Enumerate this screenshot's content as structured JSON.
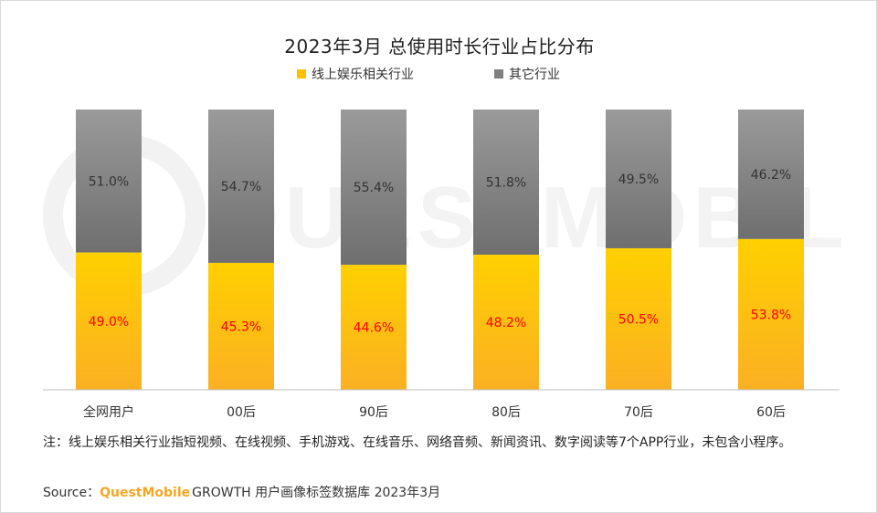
{
  "chart_data": {
    "type": "bar",
    "stacked": true,
    "title": "2023年3月 总使用时长行业占比分布",
    "categories": [
      "全网用户",
      "00后",
      "90后",
      "80后",
      "70后",
      "60后"
    ],
    "series": [
      {
        "name": "线上娱乐相关行业",
        "color": "#ffc000",
        "values": [
          49.0,
          45.3,
          44.6,
          48.2,
          50.5,
          53.8
        ],
        "labels": [
          "49.0%",
          "45.3%",
          "44.6%",
          "48.2%",
          "50.5%",
          "53.8%"
        ],
        "label_color": "#ff0000"
      },
      {
        "name": "其它行业",
        "color": "#7f7f7f",
        "values": [
          51.0,
          54.7,
          55.4,
          51.8,
          49.5,
          46.2
        ],
        "labels": [
          "51.0%",
          "54.7%",
          "55.4%",
          "51.8%",
          "49.5%",
          "46.2%"
        ],
        "label_color": "#333333"
      }
    ],
    "ylim": [
      0,
      100
    ],
    "grid": false,
    "legend_position": "top"
  },
  "note": "注：线上娱乐相关行业指短视频、在线视频、手机游戏、在线音乐、网络音频、新闻资讯、数字阅读等7个APP行业，未包含小程序。",
  "source": {
    "prefix": "Source：",
    "brand": "QuestMobile",
    "rest": " GROWTH 用户画像标签数据库 2023年3月"
  },
  "watermark": "QUESTMOBILE"
}
